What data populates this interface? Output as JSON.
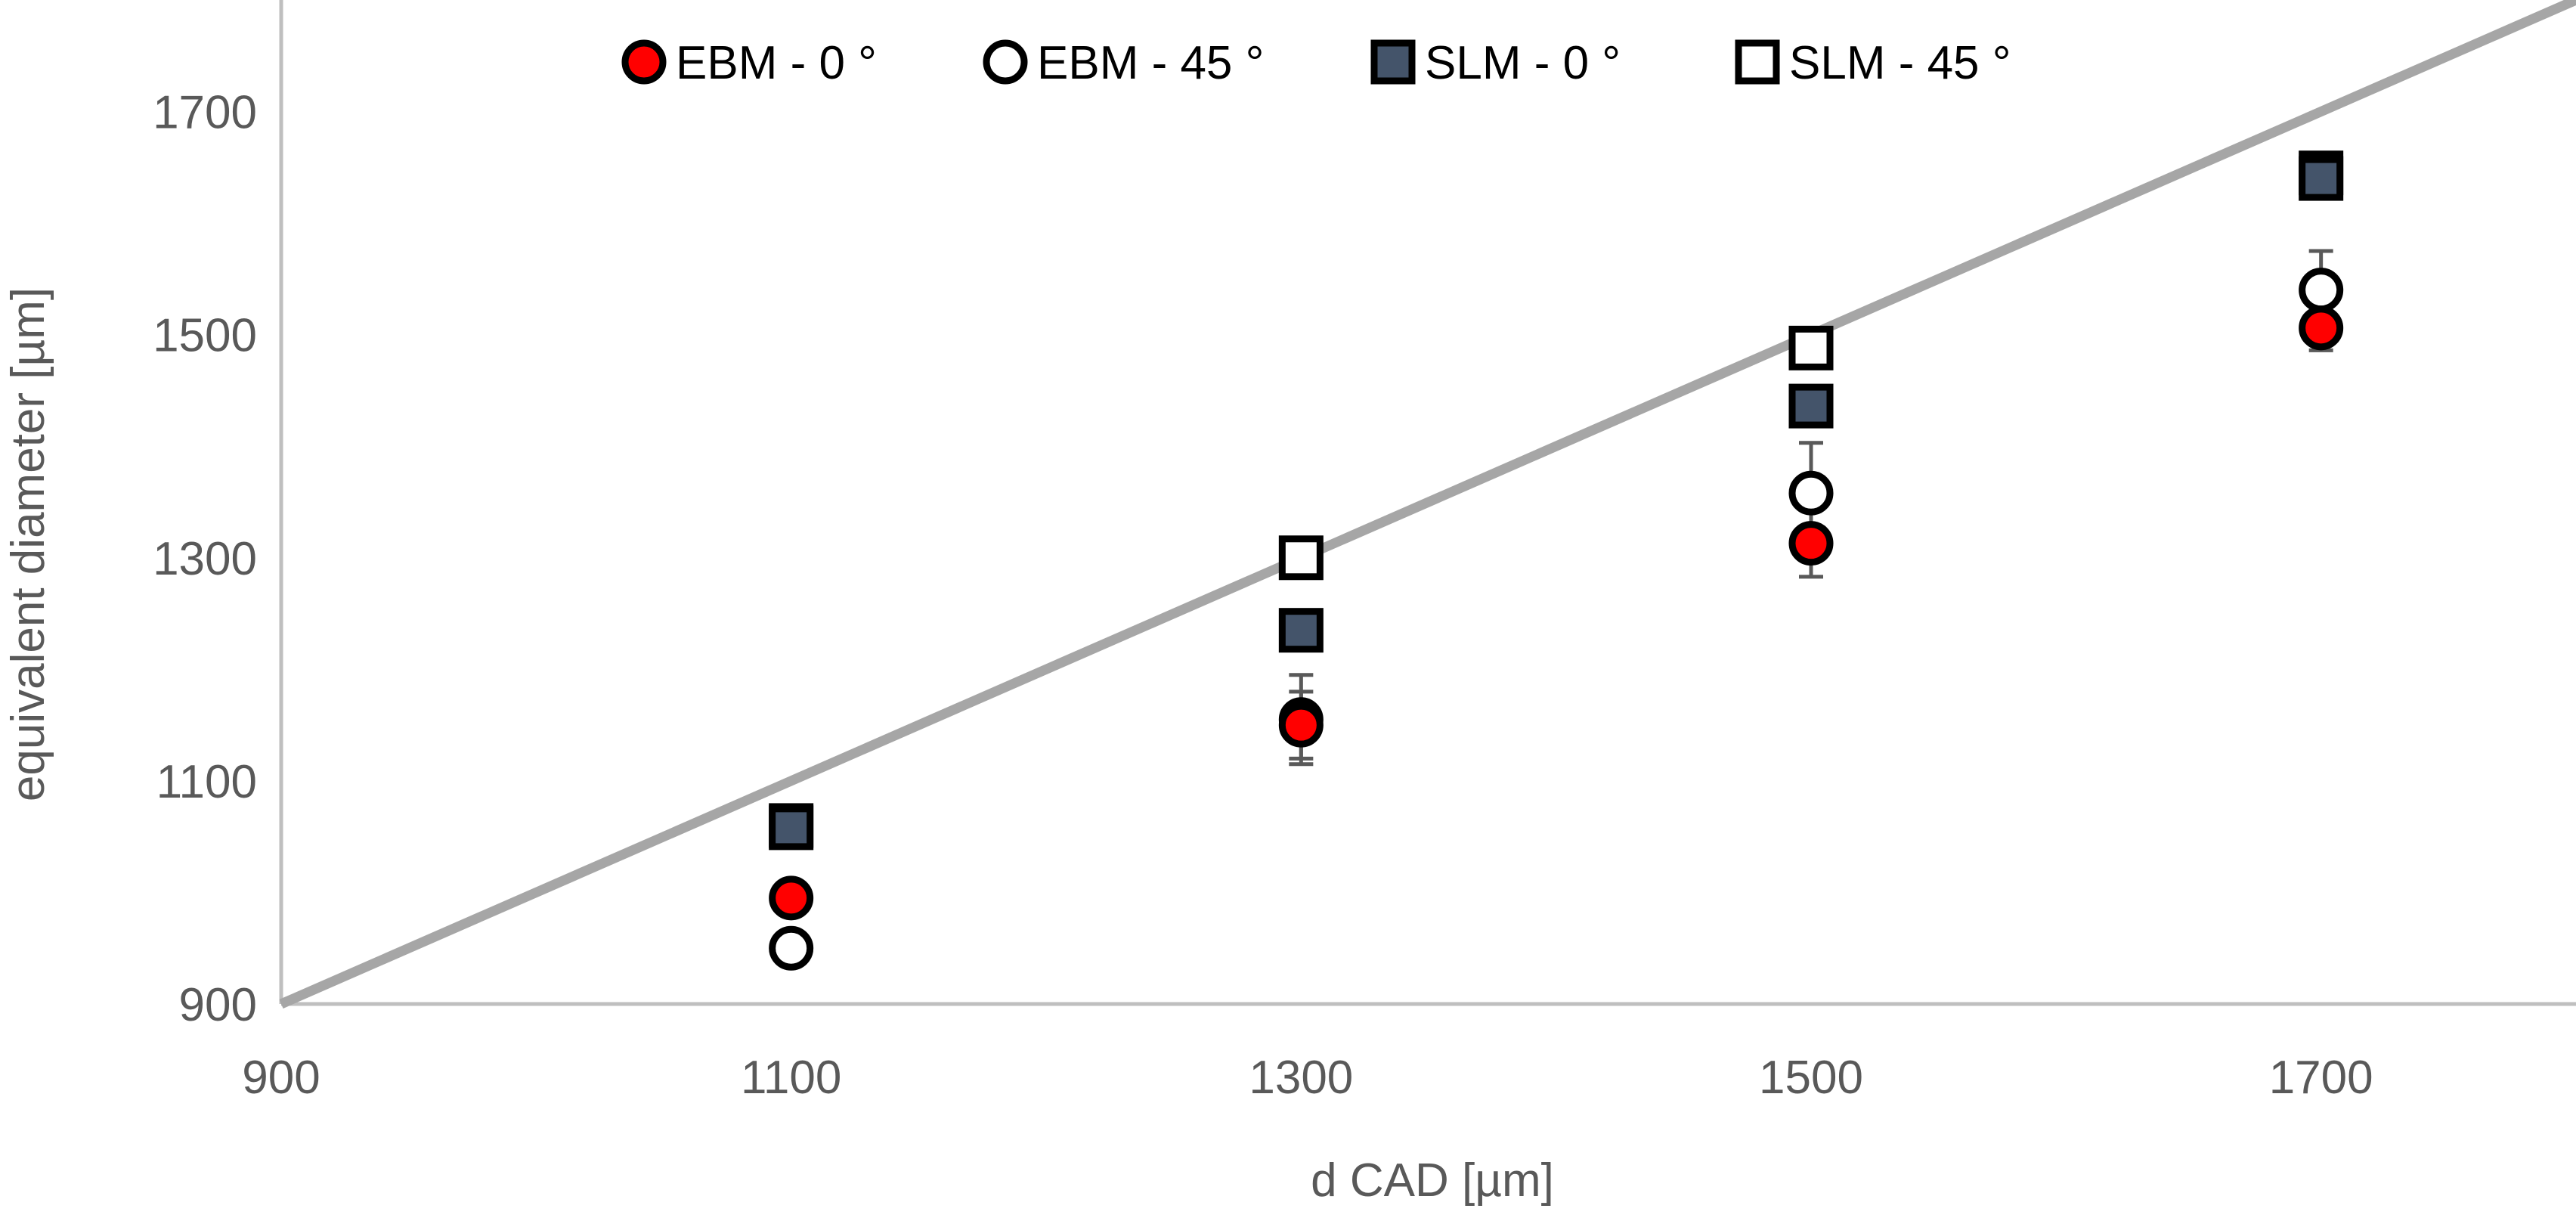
{
  "chart_data": {
    "type": "scatter",
    "title": "",
    "xlabel": "d CAD [µm]",
    "ylabel": "equivalent diameter [µm]",
    "xlim": [
      900,
      1800
    ],
    "ylim": [
      900,
      1800
    ],
    "xticks": [
      "900",
      "1100",
      "1300",
      "1500",
      "1700"
    ],
    "yticks": [
      "900",
      "1100",
      "1300",
      "1500",
      "1700"
    ],
    "grid": false,
    "legend_position": "top",
    "reference_line": {
      "x": [
        900,
        1800
      ],
      "y": [
        900,
        1800
      ],
      "color": "#a6a6a6"
    },
    "series": [
      {
        "name": "EBM - 0 °",
        "marker": "circle",
        "fill": "#ff0000",
        "stroke": "#000000",
        "x": [
          1100,
          1300,
          1500,
          1700
        ],
        "y": [
          995,
          1150,
          1313,
          1506
        ],
        "err": [
          0,
          30,
          30,
          20
        ]
      },
      {
        "name": "EBM - 45 °",
        "marker": "circle",
        "fill": "#ffffff",
        "stroke": "#000000",
        "x": [
          1100,
          1300,
          1500,
          1700
        ],
        "y": [
          950,
          1155,
          1358,
          1540
        ],
        "err": [
          15,
          40,
          45,
          35
        ]
      },
      {
        "name": "SLM - 0 °",
        "marker": "square",
        "fill": "#44546a",
        "stroke": "#000000",
        "x": [
          1100,
          1300,
          1500,
          1700
        ],
        "y": [
          1058,
          1235,
          1436,
          1640
        ],
        "err": [
          10,
          10,
          10,
          10
        ]
      },
      {
        "name": "SLM - 45 °",
        "marker": "square",
        "fill": "#ffffff",
        "stroke": "#000000",
        "x": [
          1100,
          1300,
          1500,
          1700
        ],
        "y": [
          1060,
          1300,
          1488,
          1645
        ],
        "err": [
          10,
          10,
          10,
          10
        ]
      }
    ]
  }
}
